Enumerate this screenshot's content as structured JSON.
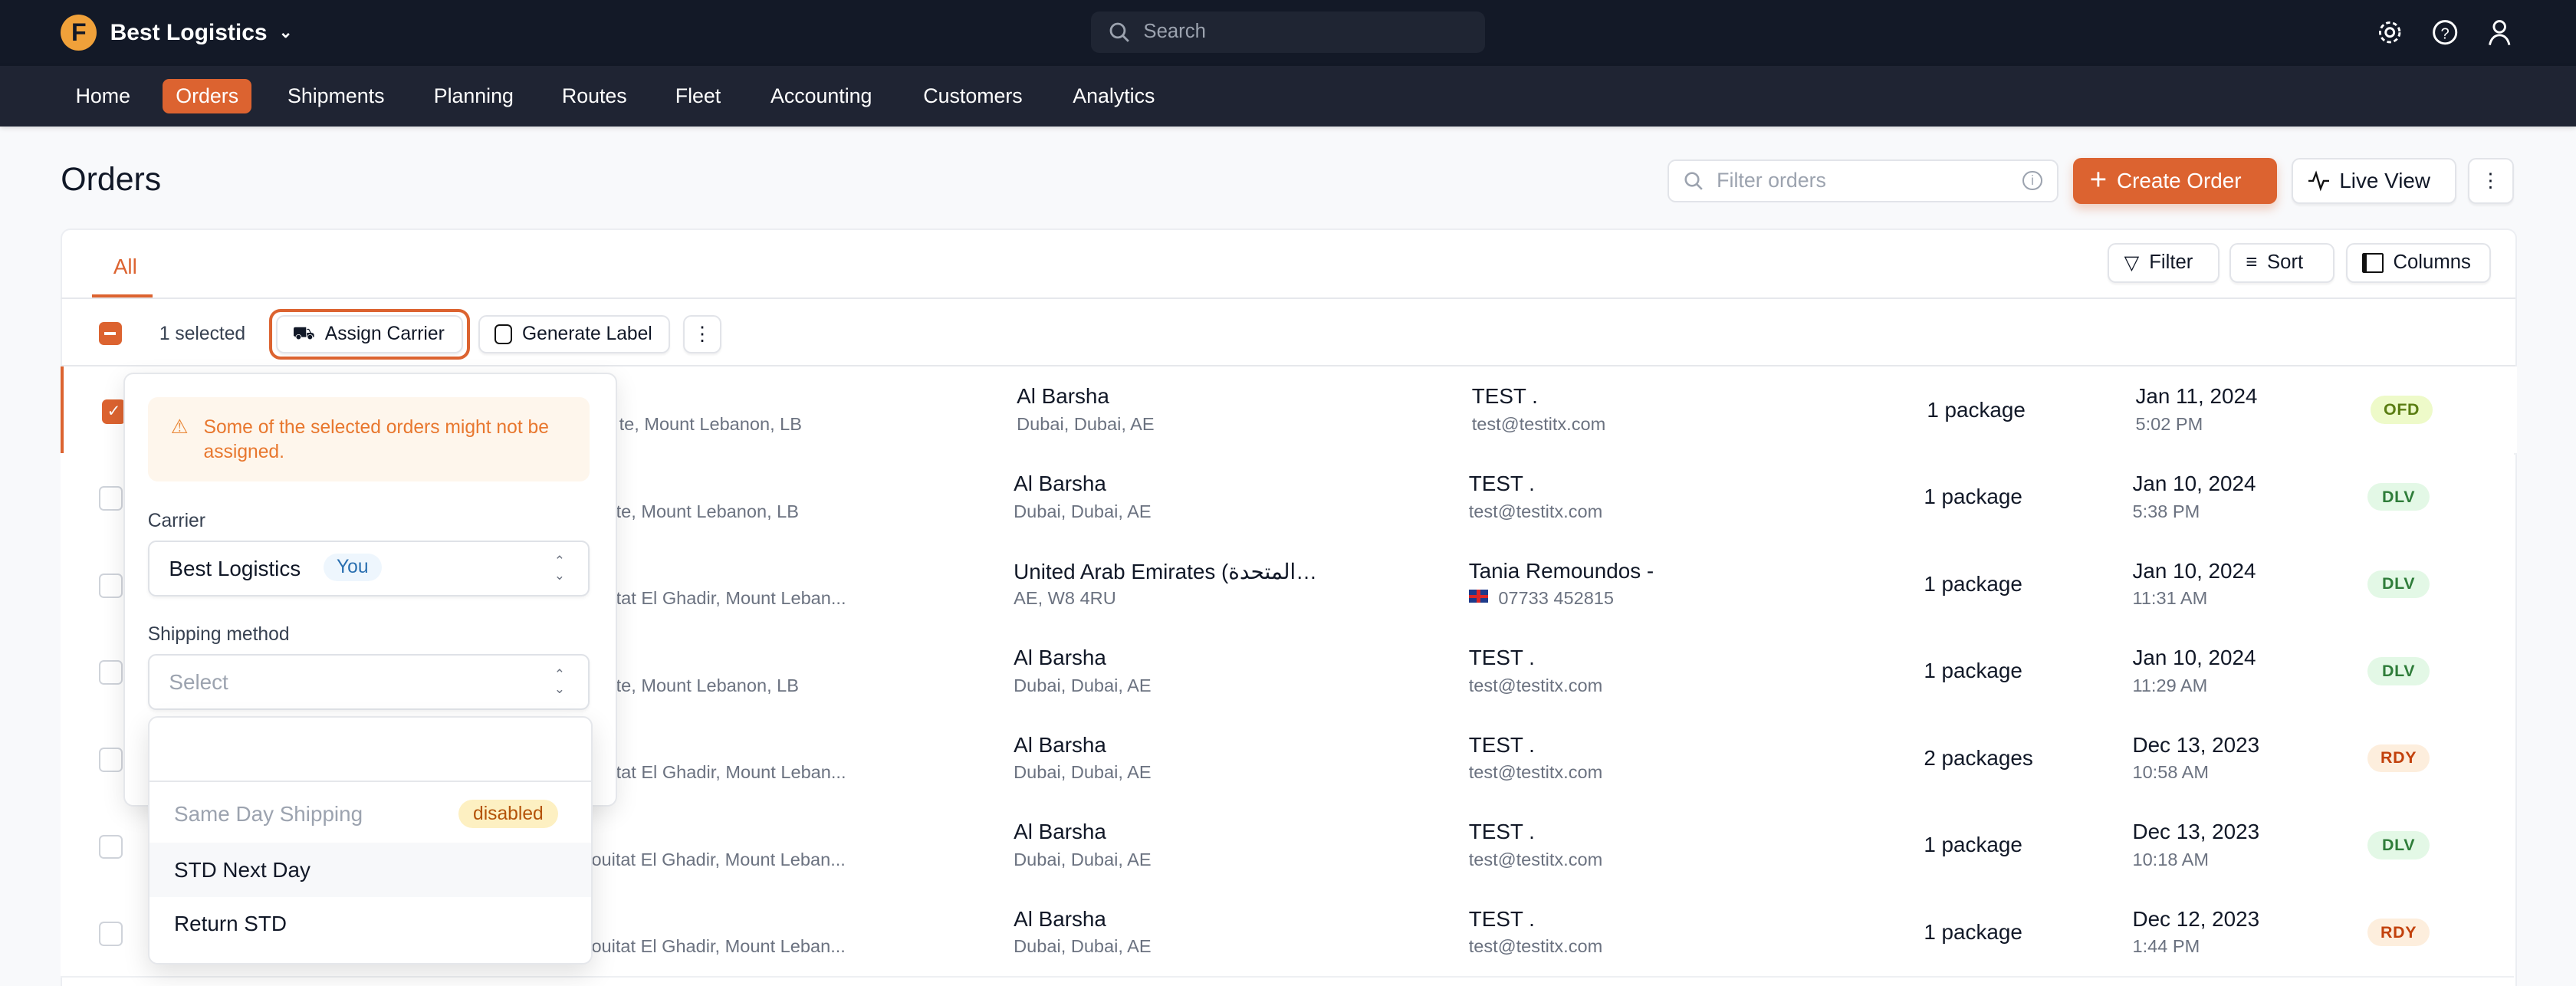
{
  "app": {
    "name": "Best Logistics",
    "search_placeholder": "Search"
  },
  "nav": [
    {
      "label": "Home"
    },
    {
      "label": "Orders",
      "active": true
    },
    {
      "label": "Shipments"
    },
    {
      "label": "Planning"
    },
    {
      "label": "Routes"
    },
    {
      "label": "Fleet"
    },
    {
      "label": "Accounting"
    },
    {
      "label": "Customers"
    },
    {
      "label": "Analytics"
    }
  ],
  "page": {
    "title": "Orders",
    "filter_placeholder": "Filter orders",
    "create_label": "Create Order",
    "live_label": "Live View"
  },
  "tabs": {
    "all": "All",
    "filter": "Filter",
    "sort": "Sort",
    "columns": "Columns"
  },
  "selection": {
    "count": "1 selected",
    "assign": "Assign Carrier",
    "label": "Generate Label"
  },
  "popover": {
    "warning": "Some of the selected orders might not be assigned.",
    "carrier_label": "Carrier",
    "carrier_value": "Best Logistics",
    "carrier_badge": "You",
    "method_label": "Shipping method",
    "method_placeholder": "Select",
    "options": [
      {
        "label": "Same Day Shipping",
        "badge": "disabled"
      },
      {
        "label": "STD Next Day"
      },
      {
        "label": "Return STD"
      }
    ]
  },
  "colors": {
    "accent": "#dc6330",
    "ofd": "#eefac9",
    "dlv": "#e3f8e6",
    "rdy": "#fdeedd"
  },
  "rows": [
    {
      "pickup": "te, Mount Lebanon, LB",
      "drop": "Al Barsha",
      "drop_sub": "Dubai, Dubai, AE",
      "cust": "TEST .",
      "cust_sub": "test@testitx.com",
      "pkg": "1 package",
      "date": "Jan 11, 2024",
      "time": "5:02 PM",
      "status": "OFD",
      "checked": true
    },
    {
      "pickup": "te, Mount Lebanon, LB",
      "drop": "Al Barsha",
      "drop_sub": "Dubai, Dubai, AE",
      "cust": "TEST .",
      "cust_sub": "test@testitx.com",
      "pkg": "1 package",
      "date": "Jan 10, 2024",
      "time": "5:38 PM",
      "status": "DLV"
    },
    {
      "pickup": "tat El Ghadir, Mount Leban...",
      "drop": "United Arab Emirates (الإمارات العربية المتحدة...",
      "drop_sub": "AE, W8 4RU",
      "cust": "Tania Remoundos -",
      "cust_sub": "07733 452815",
      "flag": true,
      "pkg": "1 package",
      "date": "Jan 10, 2024",
      "time": "11:31 AM",
      "status": "DLV"
    },
    {
      "pickup": "te, Mount Lebanon, LB",
      "drop": "Al Barsha",
      "drop_sub": "Dubai, Dubai, AE",
      "cust": "TEST .",
      "cust_sub": "test@testitx.com",
      "pkg": "1 package",
      "date": "Jan 10, 2024",
      "time": "11:29 AM",
      "status": "DLV"
    },
    {
      "pickup": "tat El Ghadir, Mount Leban...",
      "drop": "Al Barsha",
      "drop_sub": "Dubai, Dubai, AE",
      "cust": "TEST .",
      "cust_sub": "test@testitx.com",
      "pkg": "2 packages",
      "date": "Dec 13, 2023",
      "time": "10:58 AM",
      "status": "RDY"
    },
    {
      "pickup": "ouitat El Ghadir, Mount Leban...",
      "drop": "Al Barsha",
      "drop_sub": "Dubai, Dubai, AE",
      "cust": "TEST .",
      "cust_sub": "test@testitx.com",
      "pkg": "1 package",
      "date": "Dec 13, 2023",
      "time": "10:18 AM",
      "status": "DLV"
    },
    {
      "pickup": "ouitat El Ghadir, Mount Leban...",
      "drop": "Al Barsha",
      "drop_sub": "Dubai, Dubai, AE",
      "cust": "TEST .",
      "cust_sub": "test@testitx.com",
      "pkg": "1 package",
      "date": "Dec 12, 2023",
      "time": "1:44 PM",
      "status": "RDY"
    }
  ]
}
